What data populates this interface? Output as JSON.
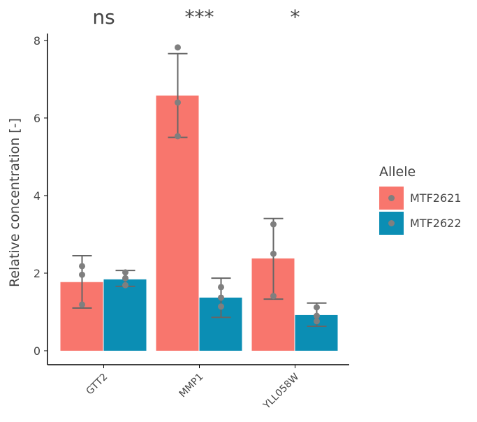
{
  "chart_data": {
    "type": "bar",
    "y_label": "Relative concentration [-]",
    "categories": [
      "GTT2",
      "MMP1",
      "YLL058W"
    ],
    "annotations": [
      "ns",
      "***",
      "*"
    ],
    "legend_title": "Allele",
    "series": [
      {
        "name": "MTF2621",
        "color": "#f8766d",
        "values": [
          1.77,
          6.58,
          2.38
        ],
        "error_upper": [
          2.45,
          7.66,
          3.41
        ],
        "error_lower": [
          1.1,
          5.5,
          1.33
        ],
        "points": [
          [
            2.18,
            1.96,
            1.19
          ],
          [
            7.82,
            6.4,
            5.53
          ],
          [
            3.26,
            2.5,
            1.41
          ]
        ]
      },
      {
        "name": "MTF2622",
        "color": "#0b8eb4",
        "values": [
          1.84,
          1.37,
          0.92
        ],
        "error_upper": [
          2.07,
          1.87,
          1.23
        ],
        "error_lower": [
          1.66,
          0.86,
          0.63
        ],
        "points": [
          [
            2.02,
            1.87,
            1.69
          ],
          [
            1.64,
            1.37,
            1.14
          ],
          [
            1.12,
            0.9,
            0.76
          ]
        ]
      }
    ],
    "ylim": [
      0,
      8.3
    ],
    "yticks": [
      0,
      2,
      4,
      6,
      8
    ]
  }
}
